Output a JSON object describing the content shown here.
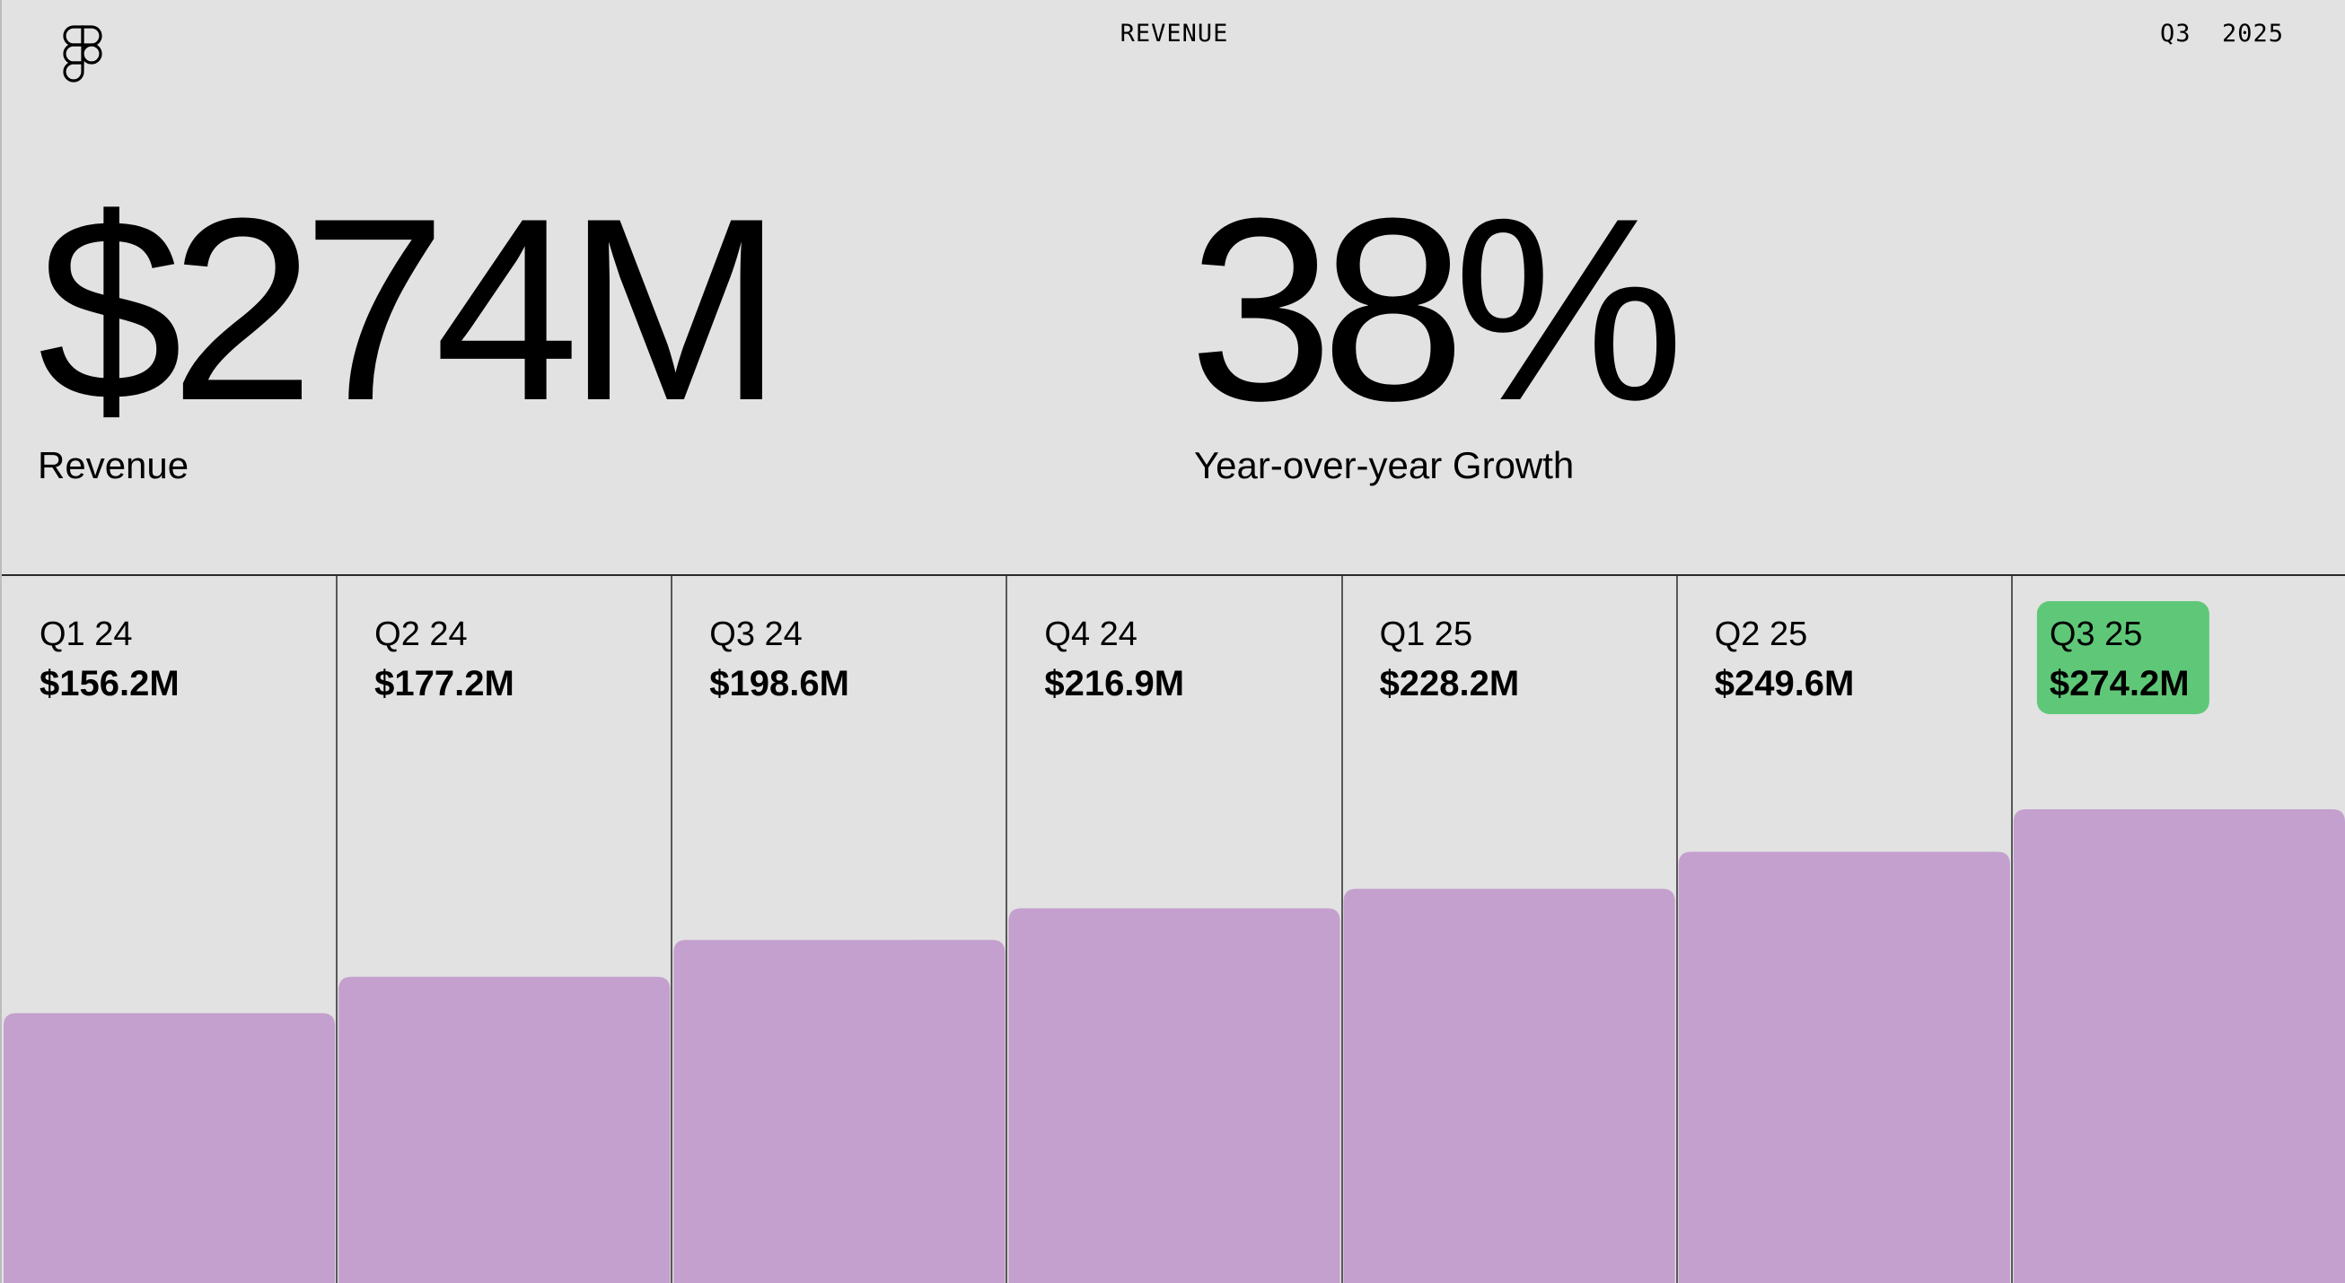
{
  "header": {
    "title": "REVENUE",
    "period": "Q3  2025"
  },
  "metrics": [
    {
      "value": "$274M",
      "label": "Revenue"
    },
    {
      "value": "38%",
      "label": "Year-over-year Growth"
    }
  ],
  "colors": {
    "background": "#e2e2e2",
    "bar": "#c4a0ce",
    "highlight": "#5fc878",
    "divider": "#2a2a2a"
  },
  "icons": {
    "logo": "figma-logo-icon"
  },
  "chart_data": {
    "type": "bar",
    "categories": [
      "Q1 24",
      "Q2 24",
      "Q3 24",
      "Q4 24",
      "Q1 25",
      "Q2 25",
      "Q3 25"
    ],
    "values": [
      156.2,
      177.2,
      198.6,
      216.9,
      228.2,
      249.6,
      274.2
    ],
    "value_labels": [
      "$156.2M",
      "$177.2M",
      "$198.6M",
      "$216.9M",
      "$228.2M",
      "$249.6M",
      "$274.2M"
    ],
    "highlight_index": 6,
    "ylim": [
      0,
      300
    ],
    "title": "",
    "xlabel": "",
    "ylabel": "",
    "grid": false
  }
}
